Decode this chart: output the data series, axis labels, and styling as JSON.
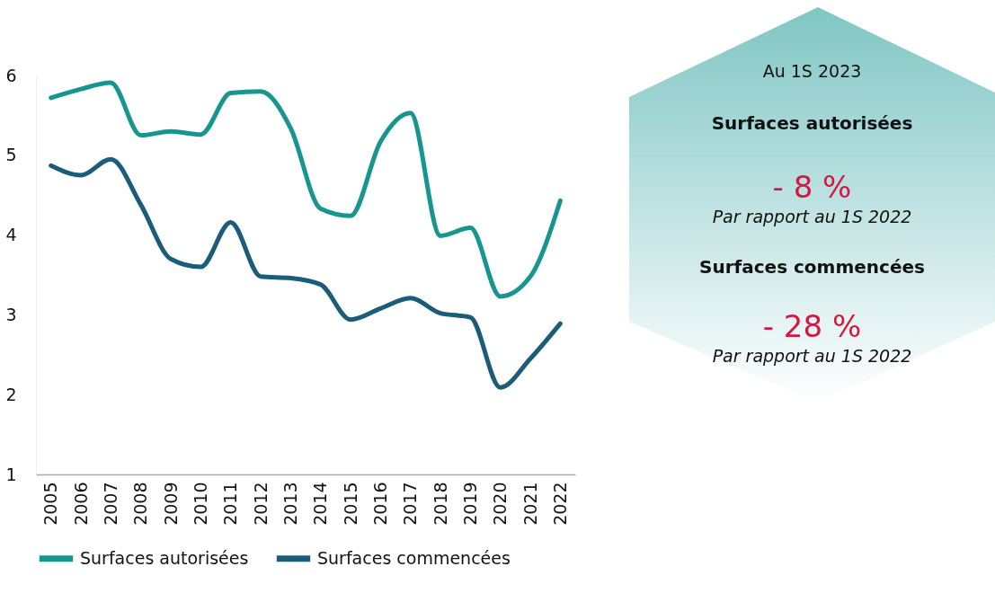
{
  "chart_data": [
    {
      "type": "line",
      "categories": [
        "2005",
        "2006",
        "2007",
        "2008",
        "2009",
        "2010",
        "2011",
        "2012",
        "2013",
        "2014",
        "2015",
        "2016",
        "2017",
        "2018",
        "2019",
        "2020",
        "2021",
        "2022"
      ],
      "series": [
        {
          "name": "Surfaces autorisées",
          "color": "#17968f",
          "values": [
            5.72,
            5.83,
            5.91,
            5.25,
            5.3,
            5.26,
            5.78,
            5.8,
            5.34,
            4.33,
            4.24,
            5.17,
            5.53,
            3.99,
            4.09,
            3.23,
            3.48,
            4.43
          ]
        },
        {
          "name": "Surfaces commencées",
          "color": "#1b5c78",
          "values": [
            4.87,
            4.75,
            4.95,
            4.38,
            3.7,
            3.6,
            4.16,
            3.48,
            3.46,
            3.38,
            2.94,
            3.08,
            3.21,
            3.02,
            2.97,
            2.09,
            2.45,
            2.89
          ]
        }
      ],
      "ylim": [
        1,
        6
      ],
      "yticks": [
        1,
        2,
        3,
        4,
        5,
        6
      ],
      "grid": false,
      "legend": "bottom",
      "line_style": "solid",
      "marker": "none"
    },
    {
      "type": "other",
      "title": "Au 1S 2023",
      "annotations": [
        "Surfaces autorisées",
        "- 8 %",
        "Par rapport au 1S 2022",
        "Surfaces commencées",
        "- 28 %",
        "Par rapport au 1S 2022"
      ]
    }
  ]
}
